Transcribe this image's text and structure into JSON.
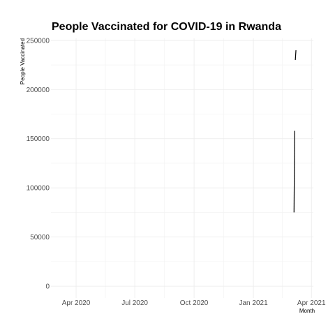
{
  "chart_data": {
    "type": "line",
    "title": "People Vaccinated for COVID-19 in Rwanda",
    "xlabel": "Month",
    "ylabel": "People Vaccinated",
    "x_type": "date",
    "xlim": [
      "2020-02-22",
      "2021-04-04"
    ],
    "ylim": [
      -12000,
      252000
    ],
    "x_ticks": [
      {
        "date": "2020-04-01",
        "label": "Apr 2020"
      },
      {
        "date": "2020-07-01",
        "label": "Jul 2020"
      },
      {
        "date": "2020-10-01",
        "label": "Oct 2020"
      },
      {
        "date": "2021-01-01",
        "label": "Jan 2021"
      },
      {
        "date": "2021-04-01",
        "label": "Apr 2021"
      }
    ],
    "y_ticks": [
      0,
      50000,
      100000,
      150000,
      200000,
      250000
    ],
    "grid": true,
    "legend": "none",
    "series": [
      {
        "segments": [
          [
            {
              "x": "2021-03-05",
              "y": 75000
            },
            {
              "x": "2021-03-06",
              "y": 158000
            }
          ],
          [
            {
              "x": "2021-03-07",
              "y": 230000
            },
            {
              "x": "2021-03-08",
              "y": 240000
            }
          ]
        ]
      }
    ]
  }
}
